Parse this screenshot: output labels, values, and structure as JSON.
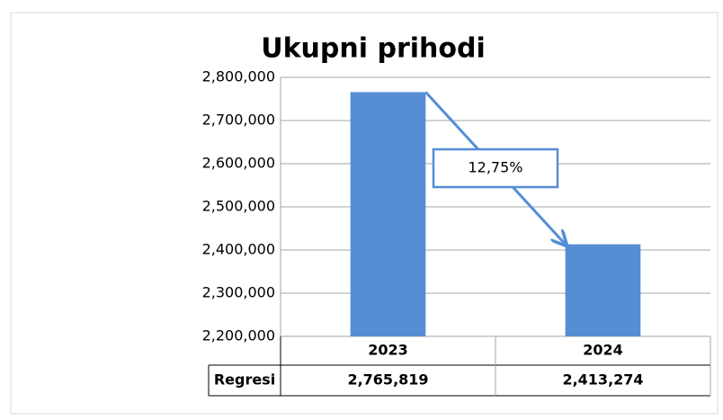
{
  "chart_data": {
    "type": "bar",
    "title": "Ukupni prihodi",
    "categories": [
      "2023",
      "2024"
    ],
    "series": [
      {
        "name": "Regresi",
        "color": "#558ed5",
        "values": [
          2765819,
          2413274
        ],
        "value_labels": [
          "2,765,819",
          "2,413,274"
        ]
      }
    ],
    "ylim": [
      2200000,
      2800000
    ],
    "yticks": [
      {
        "value": 2200000,
        "label": "2,200,000"
      },
      {
        "value": 2300000,
        "label": "2,300,000"
      },
      {
        "value": 2400000,
        "label": "2,400,000"
      },
      {
        "value": 2500000,
        "label": "2,500,000"
      },
      {
        "value": 2600000,
        "label": "2,600,000"
      },
      {
        "value": 2700000,
        "label": "2,700,000"
      },
      {
        "value": 2800000,
        "label": "2,800,000"
      }
    ],
    "grid": true,
    "annotation": "12,75%"
  }
}
